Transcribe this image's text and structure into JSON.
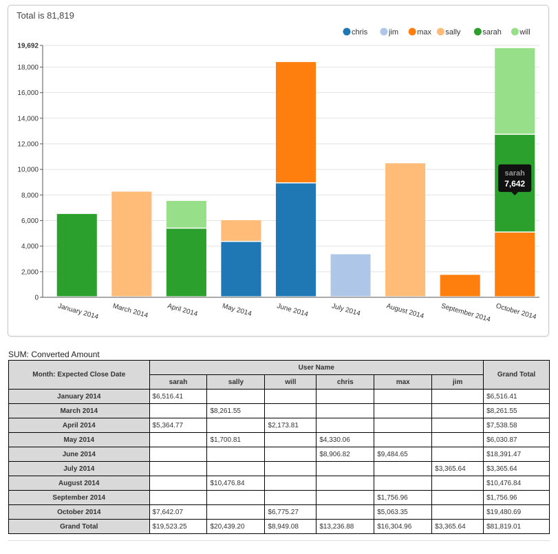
{
  "header": {
    "total_text": "Total is 81,819"
  },
  "colors": {
    "chris": "#1f77b4",
    "jim": "#aec7e8",
    "max": "#ff7f0e",
    "sally": "#ffbb78",
    "sarah": "#2ca02c",
    "will": "#98df8a"
  },
  "chart_data": {
    "type": "bar",
    "stacked": true,
    "categories": [
      "January 2014",
      "March 2014",
      "April 2014",
      "May 2014",
      "June 2014",
      "July 2014",
      "August 2014",
      "September 2014",
      "October 2014"
    ],
    "series": [
      {
        "name": "chris",
        "values": [
          0,
          0,
          0,
          4330.06,
          8906.82,
          0,
          0,
          0,
          0
        ]
      },
      {
        "name": "jim",
        "values": [
          0,
          0,
          0,
          0,
          0,
          3365.64,
          0,
          0,
          0
        ]
      },
      {
        "name": "max",
        "values": [
          0,
          0,
          0,
          0,
          9484.65,
          0,
          0,
          1756.96,
          5063.35
        ]
      },
      {
        "name": "sally",
        "values": [
          0,
          8261.55,
          0,
          1700.81,
          0,
          0,
          10476.84,
          0,
          0
        ]
      },
      {
        "name": "sarah",
        "values": [
          6516.41,
          0,
          5364.77,
          0,
          0,
          0,
          0,
          0,
          7642.07
        ]
      },
      {
        "name": "will",
        "values": [
          0,
          0,
          2173.81,
          0,
          0,
          0,
          0,
          0,
          6775.27
        ]
      }
    ],
    "ylim": [
      0,
      19692
    ],
    "yticks": [
      "0",
      "2,000",
      "4,000",
      "6,000",
      "8,000",
      "10,000",
      "12,000",
      "14,000",
      "16,000",
      "18,000",
      "19,692"
    ],
    "legend_position": "top-right",
    "grid": true,
    "tooltip": {
      "series": "sarah",
      "value": "7,642",
      "category_index": 8
    }
  },
  "table": {
    "caption": "SUM: Converted Amount",
    "row_header": "Month: Expected Close Date",
    "group_header": "User Name",
    "grand_total_header": "Grand Total",
    "columns": [
      "sarah",
      "sally",
      "will",
      "chris",
      "max",
      "jim"
    ],
    "rows": [
      {
        "label": "January 2014",
        "cells": [
          "$6,516.41",
          "",
          "",
          "",
          "",
          ""
        ],
        "total": "$6,516.41"
      },
      {
        "label": "March 2014",
        "cells": [
          "",
          "$8,261.55",
          "",
          "",
          "",
          ""
        ],
        "total": "$8,261.55"
      },
      {
        "label": "April 2014",
        "cells": [
          "$5,364.77",
          "",
          "$2,173.81",
          "",
          "",
          ""
        ],
        "total": "$7,538.58"
      },
      {
        "label": "May 2014",
        "cells": [
          "",
          "$1,700.81",
          "",
          "$4,330.06",
          "",
          ""
        ],
        "total": "$6,030.87"
      },
      {
        "label": "June 2014",
        "cells": [
          "",
          "",
          "",
          "$8,906.82",
          "$9,484.65",
          ""
        ],
        "total": "$18,391.47"
      },
      {
        "label": "July 2014",
        "cells": [
          "",
          "",
          "",
          "",
          "",
          "$3,365.64"
        ],
        "total": "$3,365.64"
      },
      {
        "label": "August 2014",
        "cells": [
          "",
          "$10,476.84",
          "",
          "",
          "",
          ""
        ],
        "total": "$10,476.84"
      },
      {
        "label": "September 2014",
        "cells": [
          "",
          "",
          "",
          "",
          "$1,756.96",
          ""
        ],
        "total": "$1,756.96"
      },
      {
        "label": "October 2014",
        "cells": [
          "$7,642.07",
          "",
          "$6,775.27",
          "",
          "$5,063.35",
          ""
        ],
        "total": "$19,480.69"
      }
    ],
    "grand_total_row": {
      "label": "Grand Total",
      "cells": [
        "$19,523.25",
        "$20,439.20",
        "$8,949.08",
        "$13,236.88",
        "$16,304.96",
        "$3,365.64"
      ],
      "total": "$81,819.01"
    }
  }
}
